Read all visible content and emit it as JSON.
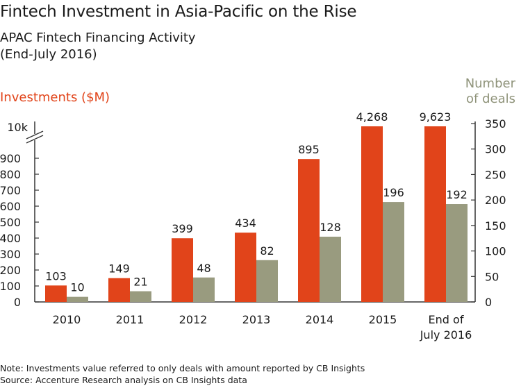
{
  "header": {
    "title": "Fintech Investment in Asia-Pacific on the Rise",
    "subtitle": "APAC Fintech Financing Activity",
    "subtitle2": "(End-July 2016)"
  },
  "chart_data": {
    "type": "bar",
    "categories": [
      "2010",
      "2011",
      "2012",
      "2013",
      "2014",
      "2015",
      "End of July 2016"
    ],
    "category_lines": [
      [
        "2010"
      ],
      [
        "2011"
      ],
      [
        "2012"
      ],
      [
        "2013"
      ],
      [
        "2014"
      ],
      [
        "2015"
      ],
      [
        "End of",
        "July 2016"
      ]
    ],
    "series": [
      {
        "name": "Investments ($M)",
        "axis": "left",
        "values": [
          103,
          149,
          399,
          434,
          895,
          4268,
          9623
        ],
        "labels": [
          "103",
          "149",
          "399",
          "434",
          "895",
          "4,268",
          "9,623"
        ],
        "color": "#e1441a"
      },
      {
        "name": "Number of deals",
        "axis": "right",
        "values": [
          10,
          21,
          48,
          82,
          128,
          196,
          192
        ],
        "labels": [
          "10",
          "21",
          "48",
          "82",
          "128",
          "196",
          "192"
        ],
        "color": "#999b7f"
      }
    ],
    "left_axis": {
      "label": "Investments ($M)",
      "ticks": [
        0,
        100,
        200,
        300,
        400,
        500,
        600,
        700,
        800,
        900
      ],
      "tick_labels": [
        "0",
        "100",
        "200",
        "300",
        "400",
        "500",
        "600",
        "700",
        "800",
        "900"
      ],
      "break_label": "10k",
      "ylim": [
        0,
        1000
      ]
    },
    "right_axis": {
      "label": "Number of deals",
      "label_lines": [
        "Number",
        "of deals"
      ],
      "ticks": [
        0,
        50,
        100,
        150,
        200,
        250,
        300,
        350
      ],
      "tick_labels": [
        "0",
        "50",
        "100",
        "150",
        "200",
        "250",
        "300",
        "350"
      ],
      "ylim": [
        0,
        350
      ]
    },
    "axis_break": true
  },
  "notes": {
    "note": "Note: Investments value referred to only deals with amount reported by CB Insights",
    "source": "Source: Accenture Research analysis on CB Insights data"
  }
}
